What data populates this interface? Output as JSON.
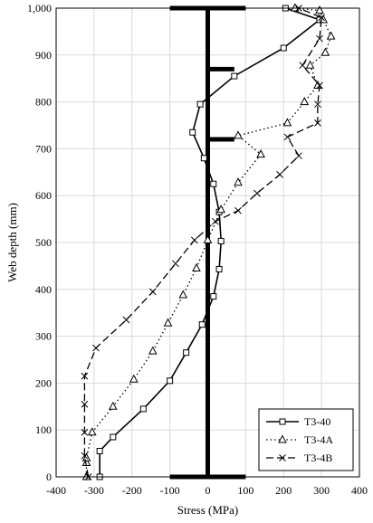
{
  "chart_data": {
    "type": "line",
    "xlabel": "Stress (MPa)",
    "ylabel": "Web depth (mm)",
    "xlim": [
      -400,
      400
    ],
    "ylim": [
      0,
      1000
    ],
    "xticks": [
      -400,
      -300,
      -200,
      -100,
      0,
      100,
      200,
      300,
      400
    ],
    "xtick_labels": [
      "-400",
      "-300",
      "-200",
      "-100",
      "0",
      "100",
      "200",
      "300",
      "400"
    ],
    "yticks": [
      0,
      100,
      200,
      300,
      400,
      500,
      600,
      700,
      800,
      900,
      1000
    ],
    "ytick_labels": [
      "0",
      "100",
      "200",
      "300",
      "400",
      "500",
      "600",
      "700",
      "800",
      "900",
      "1,000"
    ],
    "grid": true,
    "legend_position": "bottom-right",
    "section_outline": {
      "flanges": [
        {
          "depth": 1000,
          "x_from": -100,
          "x_to": 100
        },
        {
          "depth": 0,
          "x_from": -100,
          "x_to": 100
        }
      ],
      "web": {
        "x": 0,
        "depth_from": 0,
        "depth_to": 1000
      },
      "stiffeners": [
        {
          "depth": 870,
          "x_from": 0,
          "x_to": 70
        },
        {
          "depth": 720,
          "x_from": 0,
          "x_to": 70
        }
      ]
    },
    "series": [
      {
        "name": "T3-40",
        "line": "solid",
        "marker": "square",
        "points": [
          [
            -285,
            0
          ],
          [
            -285,
            55
          ],
          [
            -250,
            85
          ],
          [
            -170,
            145
          ],
          [
            -100,
            205
          ],
          [
            -57,
            265
          ],
          [
            -15,
            325
          ],
          [
            15,
            385
          ],
          [
            30,
            443
          ],
          [
            35,
            503
          ],
          [
            30,
            565
          ],
          [
            15,
            625
          ],
          [
            -10,
            680
          ],
          [
            -40,
            735
          ],
          [
            -20,
            795
          ],
          [
            70,
            855
          ],
          [
            200,
            915
          ],
          [
            295,
            975
          ],
          [
            205,
            1000
          ]
        ]
      },
      {
        "name": "T3-4A",
        "line": "dotted",
        "marker": "triangle",
        "points": [
          [
            -320,
            0
          ],
          [
            -320,
            30
          ],
          [
            -320,
            40
          ],
          [
            -305,
            95
          ],
          [
            -250,
            150
          ],
          [
            -195,
            208
          ],
          [
            -145,
            268
          ],
          [
            -105,
            328
          ],
          [
            -65,
            388
          ],
          [
            -30,
            445
          ],
          [
            0,
            505
          ],
          [
            35,
            570
          ],
          [
            80,
            628
          ],
          [
            140,
            688
          ],
          [
            80,
            728
          ],
          [
            210,
            755
          ],
          [
            255,
            800
          ],
          [
            290,
            835
          ],
          [
            270,
            878
          ],
          [
            310,
            905
          ],
          [
            325,
            940
          ],
          [
            305,
            975
          ],
          [
            295,
            995
          ],
          [
            230,
            1000
          ]
        ]
      },
      {
        "name": "T3-4B",
        "line": "dashed",
        "marker": "x",
        "points": [
          [
            -315,
            0
          ],
          [
            -325,
            45
          ],
          [
            -325,
            95
          ],
          [
            -325,
            155
          ],
          [
            -325,
            215
          ],
          [
            -295,
            275
          ],
          [
            -215,
            335
          ],
          [
            -145,
            395
          ],
          [
            -85,
            455
          ],
          [
            -35,
            505
          ],
          [
            20,
            545
          ],
          [
            80,
            568
          ],
          [
            130,
            605
          ],
          [
            190,
            645
          ],
          [
            240,
            685
          ],
          [
            210,
            725
          ],
          [
            290,
            755
          ],
          [
            290,
            795
          ],
          [
            295,
            835
          ],
          [
            250,
            878
          ],
          [
            295,
            935
          ],
          [
            300,
            980
          ],
          [
            240,
            1000
          ]
        ]
      }
    ]
  }
}
